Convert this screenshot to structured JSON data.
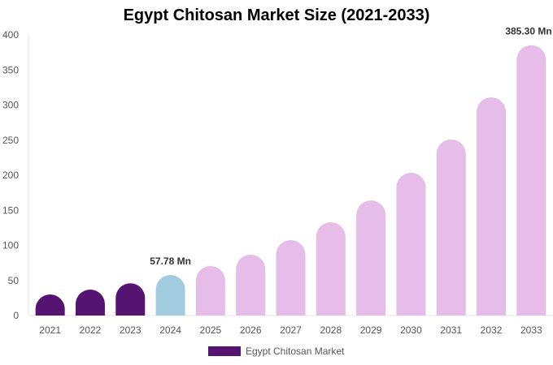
{
  "chart_data": {
    "type": "bar",
    "title": "Egypt Chitosan Market Size (2021-2033)",
    "categories": [
      "2021",
      "2022",
      "2023",
      "2024",
      "2025",
      "2026",
      "2027",
      "2028",
      "2029",
      "2030",
      "2031",
      "2032",
      "2033"
    ],
    "series": [
      {
        "name": "Egypt Chitosan Market",
        "values": [
          30,
          37,
          46,
          57.78,
          70.5,
          86.7,
          107.5,
          133,
          164,
          203.5,
          251,
          311,
          385.3
        ]
      }
    ],
    "data_labels": [
      {
        "category": "2024",
        "text": "57.78 Mn"
      },
      {
        "category": "2033",
        "text": "385.30 Mn"
      }
    ],
    "yticks": [
      0,
      50,
      100,
      150,
      200,
      250,
      300,
      350,
      400
    ],
    "ylim": [
      0,
      400
    ],
    "xlabel": "",
    "ylabel": "",
    "legend": "bottom",
    "colors": {
      "historical": "#561472",
      "current": "#a3cbe0",
      "forecast": "#e6bde9"
    }
  }
}
